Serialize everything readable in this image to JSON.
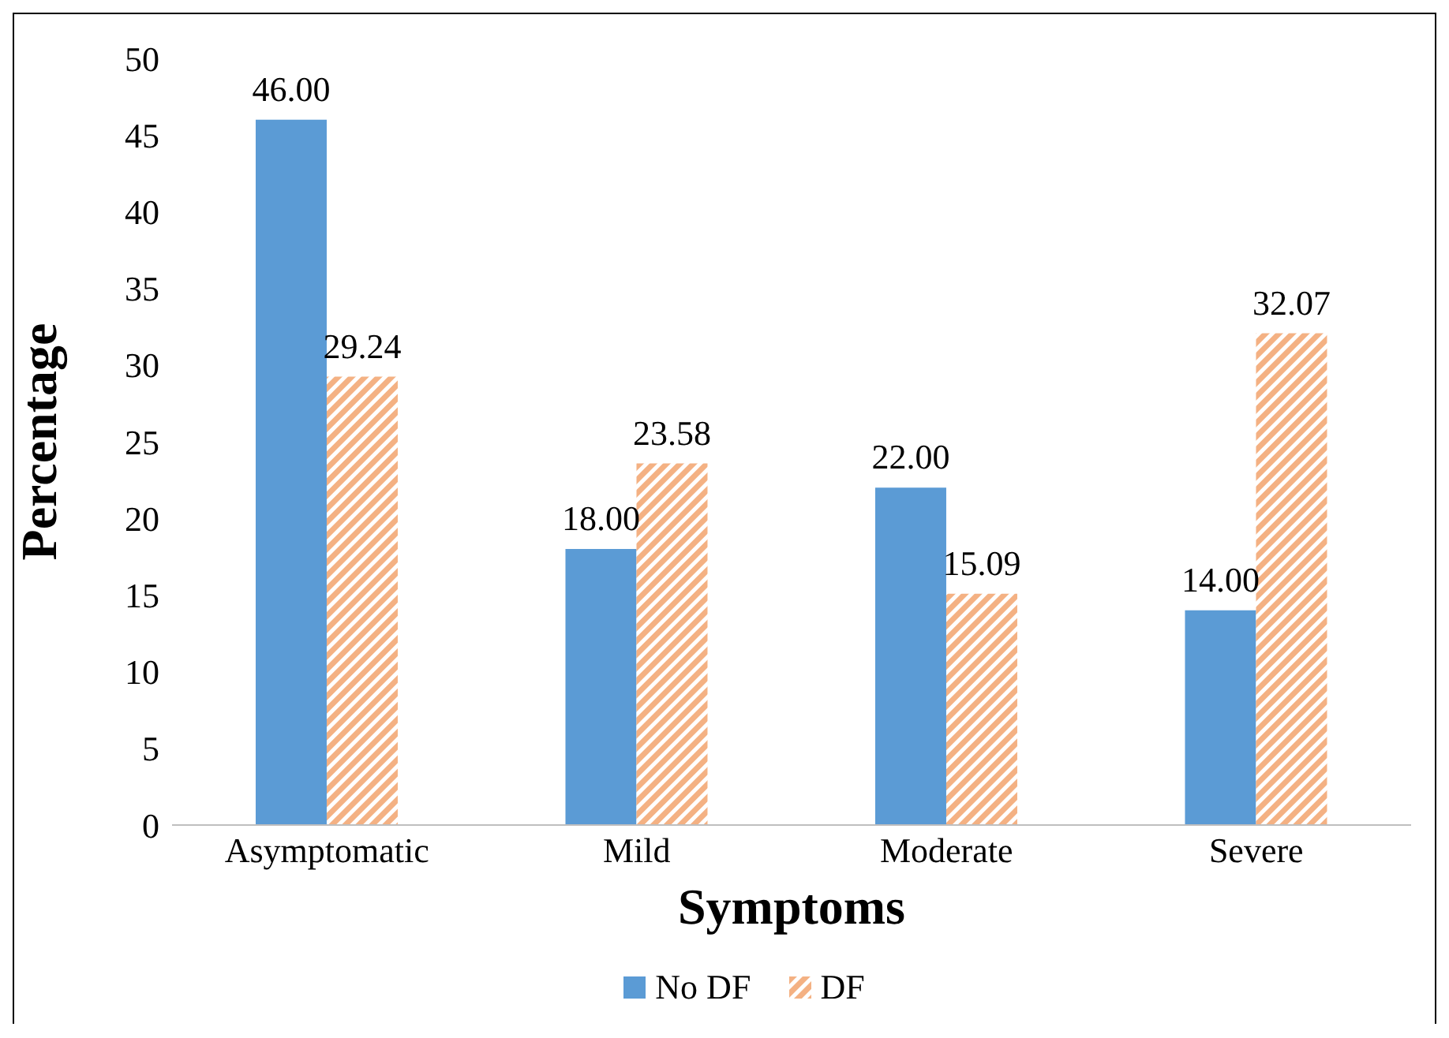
{
  "chart_data": {
    "type": "bar",
    "xlabel": "Symptoms",
    "ylabel": "Percentage",
    "categories": [
      "Asymptomatic",
      "Mild",
      "Moderate",
      "Severe"
    ],
    "series": [
      {
        "name": "No DF",
        "color": "#5b9bd5",
        "values": [
          46.0,
          18.0,
          22.0,
          14.0
        ],
        "value_labels": [
          "46.00",
          "18.00",
          "22.00",
          "14.00"
        ]
      },
      {
        "name": "DF",
        "color": "#f4b183",
        "values": [
          29.24,
          23.58,
          15.09,
          32.07
        ],
        "value_labels": [
          "29.24",
          "23.58",
          "15.09",
          "32.07"
        ]
      }
    ],
    "ylim": [
      0,
      50
    ],
    "yticks": [
      0,
      5,
      10,
      15,
      20,
      25,
      30,
      35,
      40,
      45,
      50
    ],
    "grid": false,
    "legend": "bottom"
  }
}
